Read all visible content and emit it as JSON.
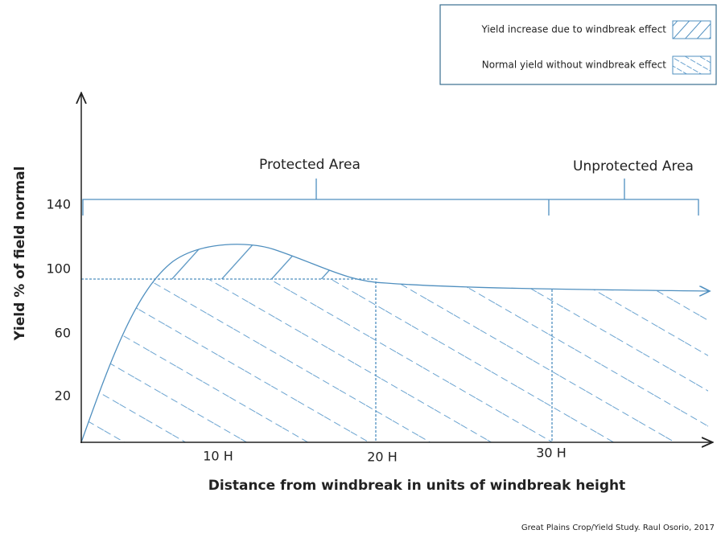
{
  "legend": {
    "items": [
      "Yield increase due to windbreak effect",
      "Normal yield without windbreak effect"
    ]
  },
  "regions": [
    "Protected Area",
    "Unprotected Area"
  ],
  "y_axis": {
    "label": "Yield % of field normal",
    "ticks": [
      "140",
      "100",
      "60",
      "20"
    ]
  },
  "x_axis": {
    "label": "Distance from windbreak in units of windbreak height",
    "ticks": [
      "10 H",
      "20 H",
      "30 H"
    ]
  },
  "source": "Great Plains Crop/Yield Study. Raul Osorio, 2017"
}
